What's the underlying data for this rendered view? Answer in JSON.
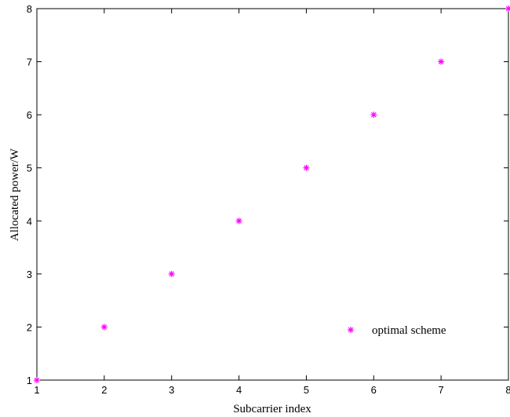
{
  "chart_data": {
    "type": "scatter",
    "title": "",
    "xlabel": "Subcarrier index",
    "ylabel": "Allocated power/W",
    "xlim": [
      1,
      8
    ],
    "ylim": [
      1,
      8
    ],
    "xticks": [
      "1",
      "2",
      "3",
      "4",
      "5",
      "6",
      "7",
      "8"
    ],
    "yticks": [
      "1",
      "2",
      "3",
      "4",
      "5",
      "6",
      "7",
      "8"
    ],
    "grid": false,
    "legend_position": "bottom-right",
    "series": [
      {
        "name": "optimal scheme",
        "marker": "asterisk",
        "color": "#ff00ff",
        "x": [
          1,
          2,
          3,
          4,
          5,
          6,
          7,
          8
        ],
        "y": [
          1,
          2,
          3,
          4,
          5,
          6,
          7,
          8
        ]
      }
    ]
  }
}
